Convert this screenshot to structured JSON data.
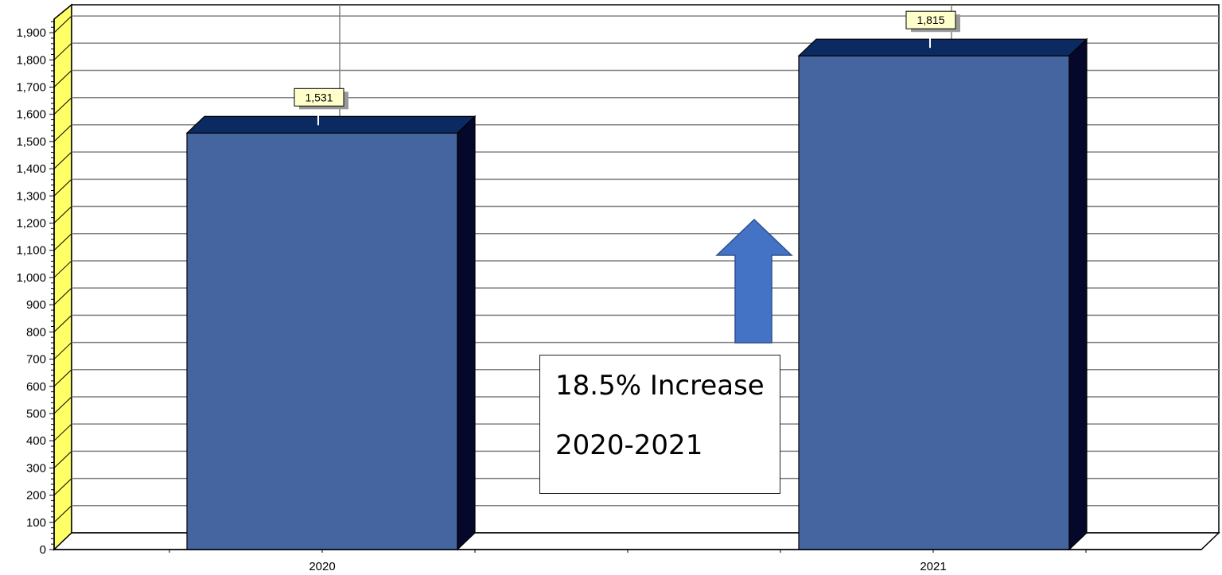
{
  "chart_data": {
    "type": "bar",
    "style": "3d",
    "categories": [
      "2020",
      "2021"
    ],
    "values": [
      1531,
      1815
    ],
    "data_labels": [
      "1,531",
      "1,815"
    ],
    "ylim": [
      0,
      1950
    ],
    "ytick_step": 100,
    "yticks": [
      "0",
      "100",
      "200",
      "300",
      "400",
      "500",
      "600",
      "700",
      "800",
      "900",
      "1,000",
      "1,100",
      "1,200",
      "1,300",
      "1,400",
      "1,500",
      "1,600",
      "1,700",
      "1,800",
      "1,900"
    ],
    "grid": true,
    "title": "",
    "xlabel": "",
    "ylabel": "",
    "colors": {
      "bar_front": "#4565a1",
      "bar_top": "#0b2a62",
      "bar_side": "#05082a",
      "wall": "#ffff66",
      "grid": "#808080",
      "label_bg": "#ffffcc"
    }
  },
  "annotation": {
    "line1": "18.5% Increase",
    "line2": "2020-2021",
    "arrow_color": "#4472c4",
    "arrow_icon": "up-arrow-icon"
  }
}
